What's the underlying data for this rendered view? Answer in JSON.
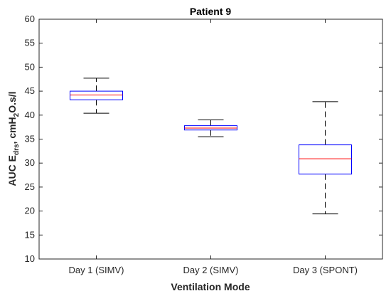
{
  "chart_data": {
    "type": "boxplot",
    "title": "Patient 9",
    "xlabel": "Ventilation Mode",
    "ylabel": {
      "main": "AUC E",
      "sub1": "drs",
      "mid": ", cmH",
      "sub2": "2",
      "tail": "O.s/l"
    },
    "ylim": [
      10,
      60
    ],
    "yticks": [
      "10",
      "15",
      "20",
      "25",
      "30",
      "35",
      "40",
      "45",
      "50",
      "55",
      "60"
    ],
    "categories": [
      "Day 1 (SIMV)",
      "Day 2 (SIMV)",
      "Day 3 (SPONT)"
    ],
    "boxes": [
      {
        "whisker_low": 40.4,
        "q1": 43.2,
        "median": 44.2,
        "q3": 45.0,
        "whisker_high": 47.7
      },
      {
        "whisker_low": 35.5,
        "q1": 36.9,
        "median": 37.3,
        "q3": 37.8,
        "whisker_high": 39.0
      },
      {
        "whisker_low": 19.4,
        "q1": 27.7,
        "median": 30.9,
        "q3": 33.8,
        "whisker_high": 42.8
      }
    ],
    "grid": false,
    "colors": {
      "box": "#0000ff",
      "median": "#ff0000",
      "whisker": "#000000",
      "axis": "#262626"
    }
  }
}
